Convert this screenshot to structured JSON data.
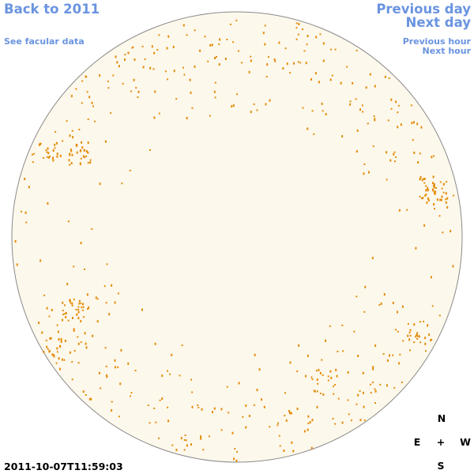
{
  "nav": {
    "back": "Back to 2011",
    "facular": "See facular data",
    "previous_day": "Previous day",
    "next_day": "Next day",
    "previous_hour": "Previous hour",
    "next_hour": "Next hour"
  },
  "timestamp": "2011-10-07T11:59:03",
  "compass": {
    "north": "N",
    "east": "E",
    "center": "+",
    "west": "W",
    "south": "S"
  }
}
